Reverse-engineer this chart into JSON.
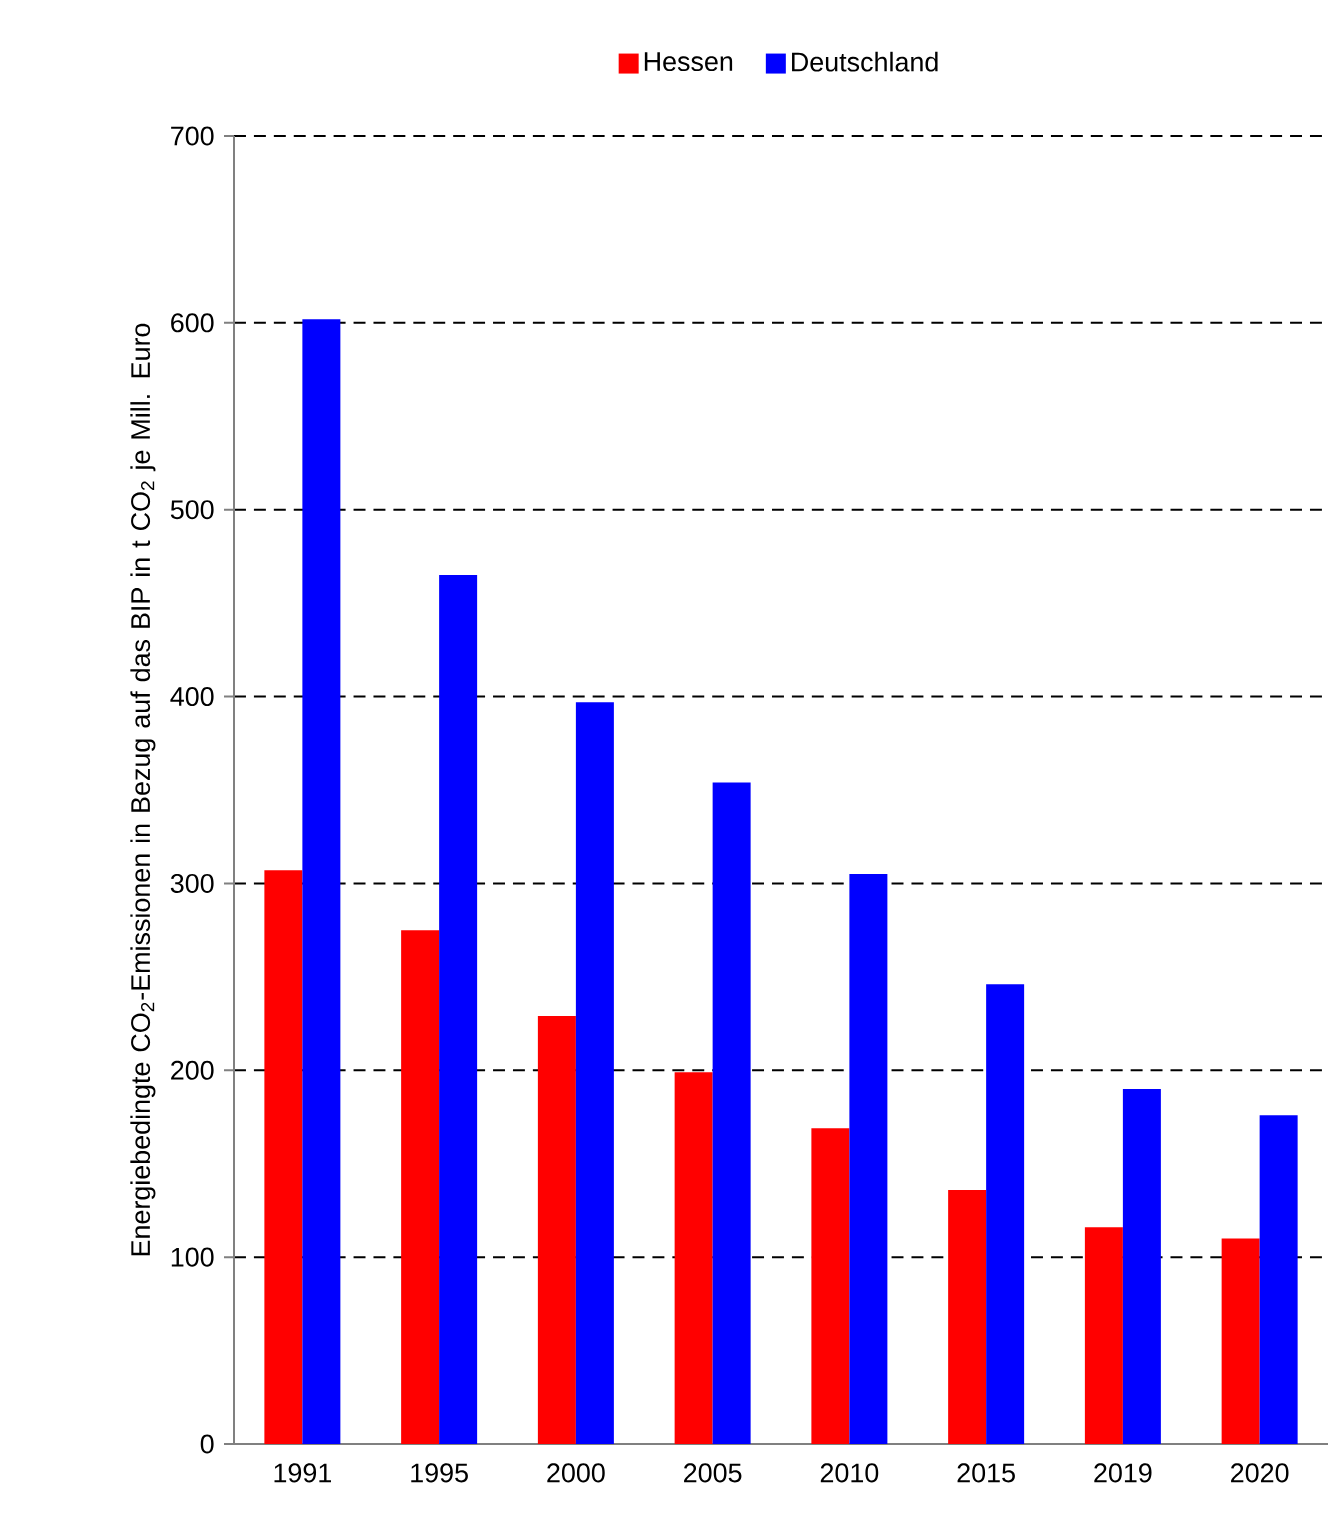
{
  "chart_data": {
    "type": "bar",
    "ylabel": "Energiebedingte CO$_{2}$-Emissionen in Bezug auf das BIP in t CO$_{2}$ je Mill. Euro",
    "categories": [
      "1991",
      "1995",
      "2000",
      "2005",
      "2010",
      "2015",
      "2019",
      "2020"
    ],
    "series": [
      {
        "name": "Hessen",
        "color": "#ff0000",
        "values": [
          307,
          275,
          229,
          199,
          169,
          136,
          116,
          110
        ]
      },
      {
        "name": "Deutschland",
        "color": "#0000ff",
        "values": [
          602,
          465,
          397,
          354,
          305,
          246,
          190,
          176
        ]
      }
    ],
    "ylim": [
      0,
      700
    ],
    "yticks": [
      0,
      100,
      200,
      300,
      400,
      500,
      600,
      700
    ],
    "grid": "y",
    "legend": "top"
  }
}
